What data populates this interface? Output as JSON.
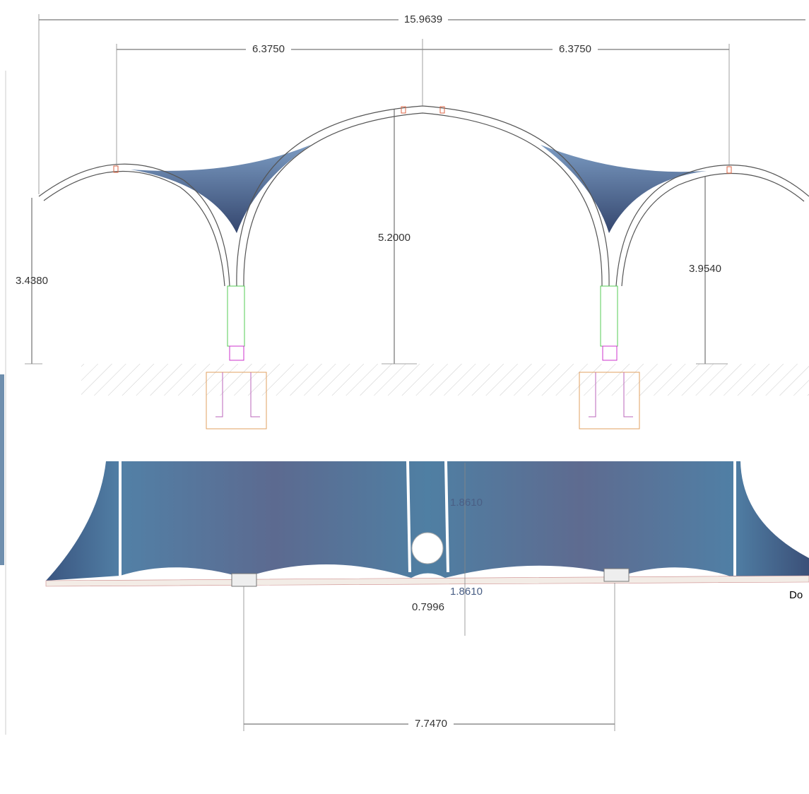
{
  "dimensions": {
    "overall_width": "15.9639",
    "left_span": "6.3750",
    "right_span": "6.3750",
    "center_height": "5.2000",
    "left_height": "3.4380",
    "right_height": "3.9540",
    "plan_upper_offset": "1.8610",
    "plan_lower_offset": "1.8610",
    "plan_gap": "0.7996",
    "plan_column_spacing": "7.7470"
  },
  "side_text": "Do"
}
